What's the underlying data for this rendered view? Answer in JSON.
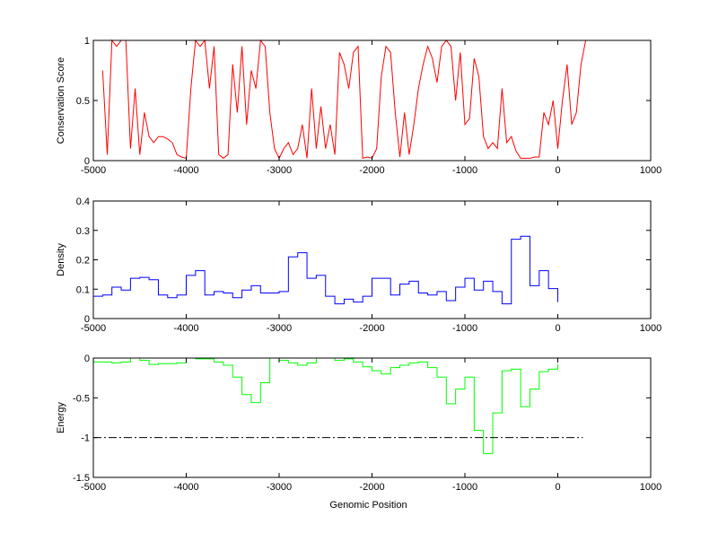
{
  "chart_data": [
    {
      "type": "line",
      "ylabel": "Conservation Score",
      "xlim": [
        -5000,
        1000
      ],
      "ylim": [
        0,
        1
      ],
      "xticks": [
        "-5000",
        "-4000",
        "-3000",
        "-2000",
        "-1000",
        "0",
        "1000"
      ],
      "yticks": [
        "0",
        "0.5",
        "1"
      ],
      "ytick_values": [
        0,
        0.5,
        1
      ],
      "color": "#ff0000",
      "x_start": -4900,
      "x_step": 50,
      "values": [
        0.75,
        0.05,
        1.0,
        0.95,
        1.0,
        1.0,
        0.1,
        0.6,
        0.05,
        0.4,
        0.2,
        0.15,
        0.2,
        0.2,
        0.18,
        0.15,
        0.05,
        0.03,
        0.02,
        0.6,
        1.0,
        0.95,
        1.0,
        0.6,
        0.95,
        0.05,
        0.02,
        0.05,
        0.8,
        0.4,
        0.95,
        0.3,
        0.75,
        0.6,
        1.0,
        0.95,
        0.4,
        0.1,
        0.02,
        0.1,
        0.15,
        0.05,
        0.1,
        0.3,
        0.02,
        0.6,
        0.1,
        0.45,
        0.1,
        0.3,
        0.05,
        0.9,
        0.8,
        0.6,
        0.9,
        0.95,
        0.02,
        0.03,
        0.02,
        0.1,
        0.7,
        0.95,
        0.9,
        0.4,
        0.03,
        0.4,
        0.05,
        0.3,
        0.6,
        0.8,
        0.95,
        0.85,
        0.65,
        0.95,
        1.0,
        0.95,
        0.5,
        0.9,
        0.3,
        0.35,
        0.85,
        0.7,
        0.2,
        0.1,
        0.15,
        0.1,
        0.6,
        0.15,
        0.2,
        0.08,
        0.02,
        0.02,
        0.02,
        0.03,
        0.03,
        0.4,
        0.3,
        0.5,
        0.1,
        0.5,
        0.8,
        0.3,
        0.4,
        0.8,
        1.0
      ]
    },
    {
      "type": "line",
      "ylabel": "Density",
      "xlim": [
        -5000,
        1000
      ],
      "ylim": [
        0,
        0.4
      ],
      "xticks": [
        "-5000",
        "-4000",
        "-3000",
        "-2000",
        "-1000",
        "0",
        "1000"
      ],
      "yticks": [
        "0",
        "0.1",
        "0.2",
        "0.3",
        "0.4"
      ],
      "ytick_values": [
        0,
        0.1,
        0.2,
        0.3,
        0.4
      ],
      "color": "#0000ff",
      "x_start": -5000,
      "x_step": 100,
      "values": [
        0.076,
        0.08,
        0.107,
        0.097,
        0.137,
        0.14,
        0.132,
        0.08,
        0.071,
        0.08,
        0.147,
        0.163,
        0.08,
        0.092,
        0.087,
        0.071,
        0.097,
        0.112,
        0.087,
        0.087,
        0.092,
        0.21,
        0.224,
        0.137,
        0.147,
        0.076,
        0.05,
        0.066,
        0.056,
        0.076,
        0.137,
        0.137,
        0.08,
        0.117,
        0.127,
        0.087,
        0.08,
        0.092,
        0.061,
        0.107,
        0.137,
        0.097,
        0.127,
        0.092,
        0.05,
        0.27,
        0.28,
        0.112,
        0.163,
        0.102,
        0.056
      ]
    },
    {
      "type": "line",
      "ylabel": "Energy",
      "xlabel": "Genomic Position",
      "xlim": [
        -5000,
        1000
      ],
      "ylim": [
        -1.5,
        0
      ],
      "xticks": [
        "-5000",
        "-4000",
        "-3000",
        "-2000",
        "-1000",
        "0",
        "1000"
      ],
      "yticks": [
        "0",
        "-0.5",
        "-1",
        "-1.5"
      ],
      "ytick_values": [
        0,
        -0.5,
        -1,
        -1.5
      ],
      "color": "#00ff00",
      "x_start": -5000,
      "x_step": 100,
      "values": [
        -0.05,
        -0.05,
        -0.06,
        -0.05,
        0,
        -0.03,
        -0.08,
        -0.07,
        -0.07,
        -0.06,
        0,
        -0.01,
        -0.01,
        -0.05,
        -0.09,
        -0.24,
        -0.46,
        -0.56,
        -0.31,
        0,
        -0.03,
        -0.06,
        -0.09,
        -0.06,
        0,
        0,
        -0.03,
        -0.01,
        -0.05,
        -0.11,
        -0.16,
        -0.2,
        -0.12,
        -0.09,
        -0.06,
        -0.05,
        -0.12,
        -0.24,
        -0.575,
        -0.39,
        -0.24,
        -0.91,
        -1.2,
        -0.69,
        -0.16,
        -0.14,
        -0.61,
        -0.39,
        -0.17,
        -0.14,
        -0.08
      ],
      "threshold": {
        "value": -1,
        "x_range": [
          -5000,
          270
        ],
        "style": "dash-dot",
        "color": "#000000"
      }
    }
  ]
}
